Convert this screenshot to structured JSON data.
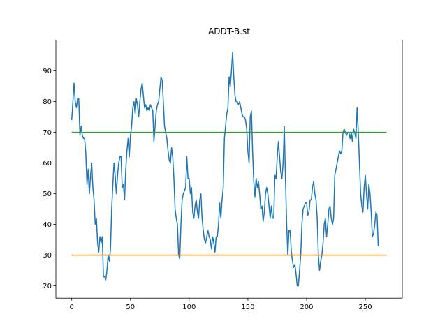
{
  "chart_data": {
    "type": "line",
    "title": "ADDT-B.st",
    "xlabel": "",
    "ylabel": "",
    "xlim": [
      -13.5,
      281.5
    ],
    "ylim": [
      16,
      100
    ],
    "xticks": [
      0,
      50,
      100,
      150,
      200,
      250
    ],
    "yticks": [
      20,
      30,
      40,
      50,
      60,
      70,
      80,
      90
    ],
    "grid": false,
    "colors": {
      "main": "#1f77b4",
      "upper": "#2ca02c",
      "lower": "#ff7f0e"
    },
    "series": [
      {
        "values": [
          74,
          80,
          86,
          80,
          78,
          81,
          81,
          69,
          72,
          69,
          68,
          68,
          63,
          53,
          58,
          50,
          56,
          60,
          52,
          48,
          40,
          42,
          34,
          31,
          36,
          34,
          36,
          23,
          23,
          22,
          25,
          30,
          28,
          32,
          45,
          53,
          60,
          56,
          50,
          56,
          60,
          62,
          62,
          52,
          53,
          48,
          58,
          64,
          68,
          62,
          69,
          72,
          78,
          80,
          76,
          81,
          79,
          75,
          80,
          84,
          86,
          82,
          78,
          79,
          77,
          78,
          77,
          79,
          78,
          77,
          67,
          72,
          77,
          79,
          80,
          84,
          88,
          87,
          80,
          72,
          70,
          68,
          64,
          61,
          60,
          65,
          62,
          55,
          45,
          42,
          40,
          30,
          29,
          40,
          48,
          50,
          51,
          52,
          62,
          55,
          55,
          50,
          52,
          44,
          42,
          46,
          48,
          44,
          42,
          48,
          50,
          42,
          38,
          35,
          34,
          36,
          38,
          36,
          35,
          32,
          36,
          34,
          31,
          36,
          36,
          40,
          47,
          42,
          48,
          52,
          68,
          72,
          76,
          78,
          88,
          85,
          90,
          96,
          88,
          82,
          80,
          80,
          79,
          80,
          78,
          76,
          75,
          75,
          74,
          71,
          64,
          60,
          75,
          77,
          64,
          54,
          49,
          55,
          52,
          54,
          50,
          45,
          46,
          41,
          44,
          50,
          52,
          50,
          46,
          42,
          46,
          42,
          42,
          56,
          55,
          62,
          67,
          62,
          57,
          55,
          60,
          72,
          55,
          40,
          30,
          38,
          38,
          31,
          28,
          26,
          27,
          24,
          20,
          20,
          25,
          30,
          40,
          45,
          46,
          47,
          47,
          43,
          44,
          48,
          48,
          52,
          54,
          50,
          48,
          42,
          30,
          25,
          28,
          30,
          34,
          40,
          42,
          36,
          40,
          45,
          46,
          42,
          40,
          42,
          56,
          58,
          60,
          62,
          64,
          63,
          64,
          70,
          71,
          70,
          69,
          70,
          70,
          68,
          70,
          67,
          71,
          70,
          68,
          78,
          70,
          60,
          50,
          46,
          44,
          52,
          56,
          50,
          45,
          53,
          50,
          44,
          36,
          37,
          40,
          44,
          43,
          33
        ],
        "x_start": 0,
        "x_step": 1
      },
      {
        "x": [
          0,
          268
        ],
        "values": [
          70,
          70
        ]
      },
      {
        "x": [
          0,
          268
        ],
        "values": [
          30,
          30
        ]
      }
    ]
  }
}
